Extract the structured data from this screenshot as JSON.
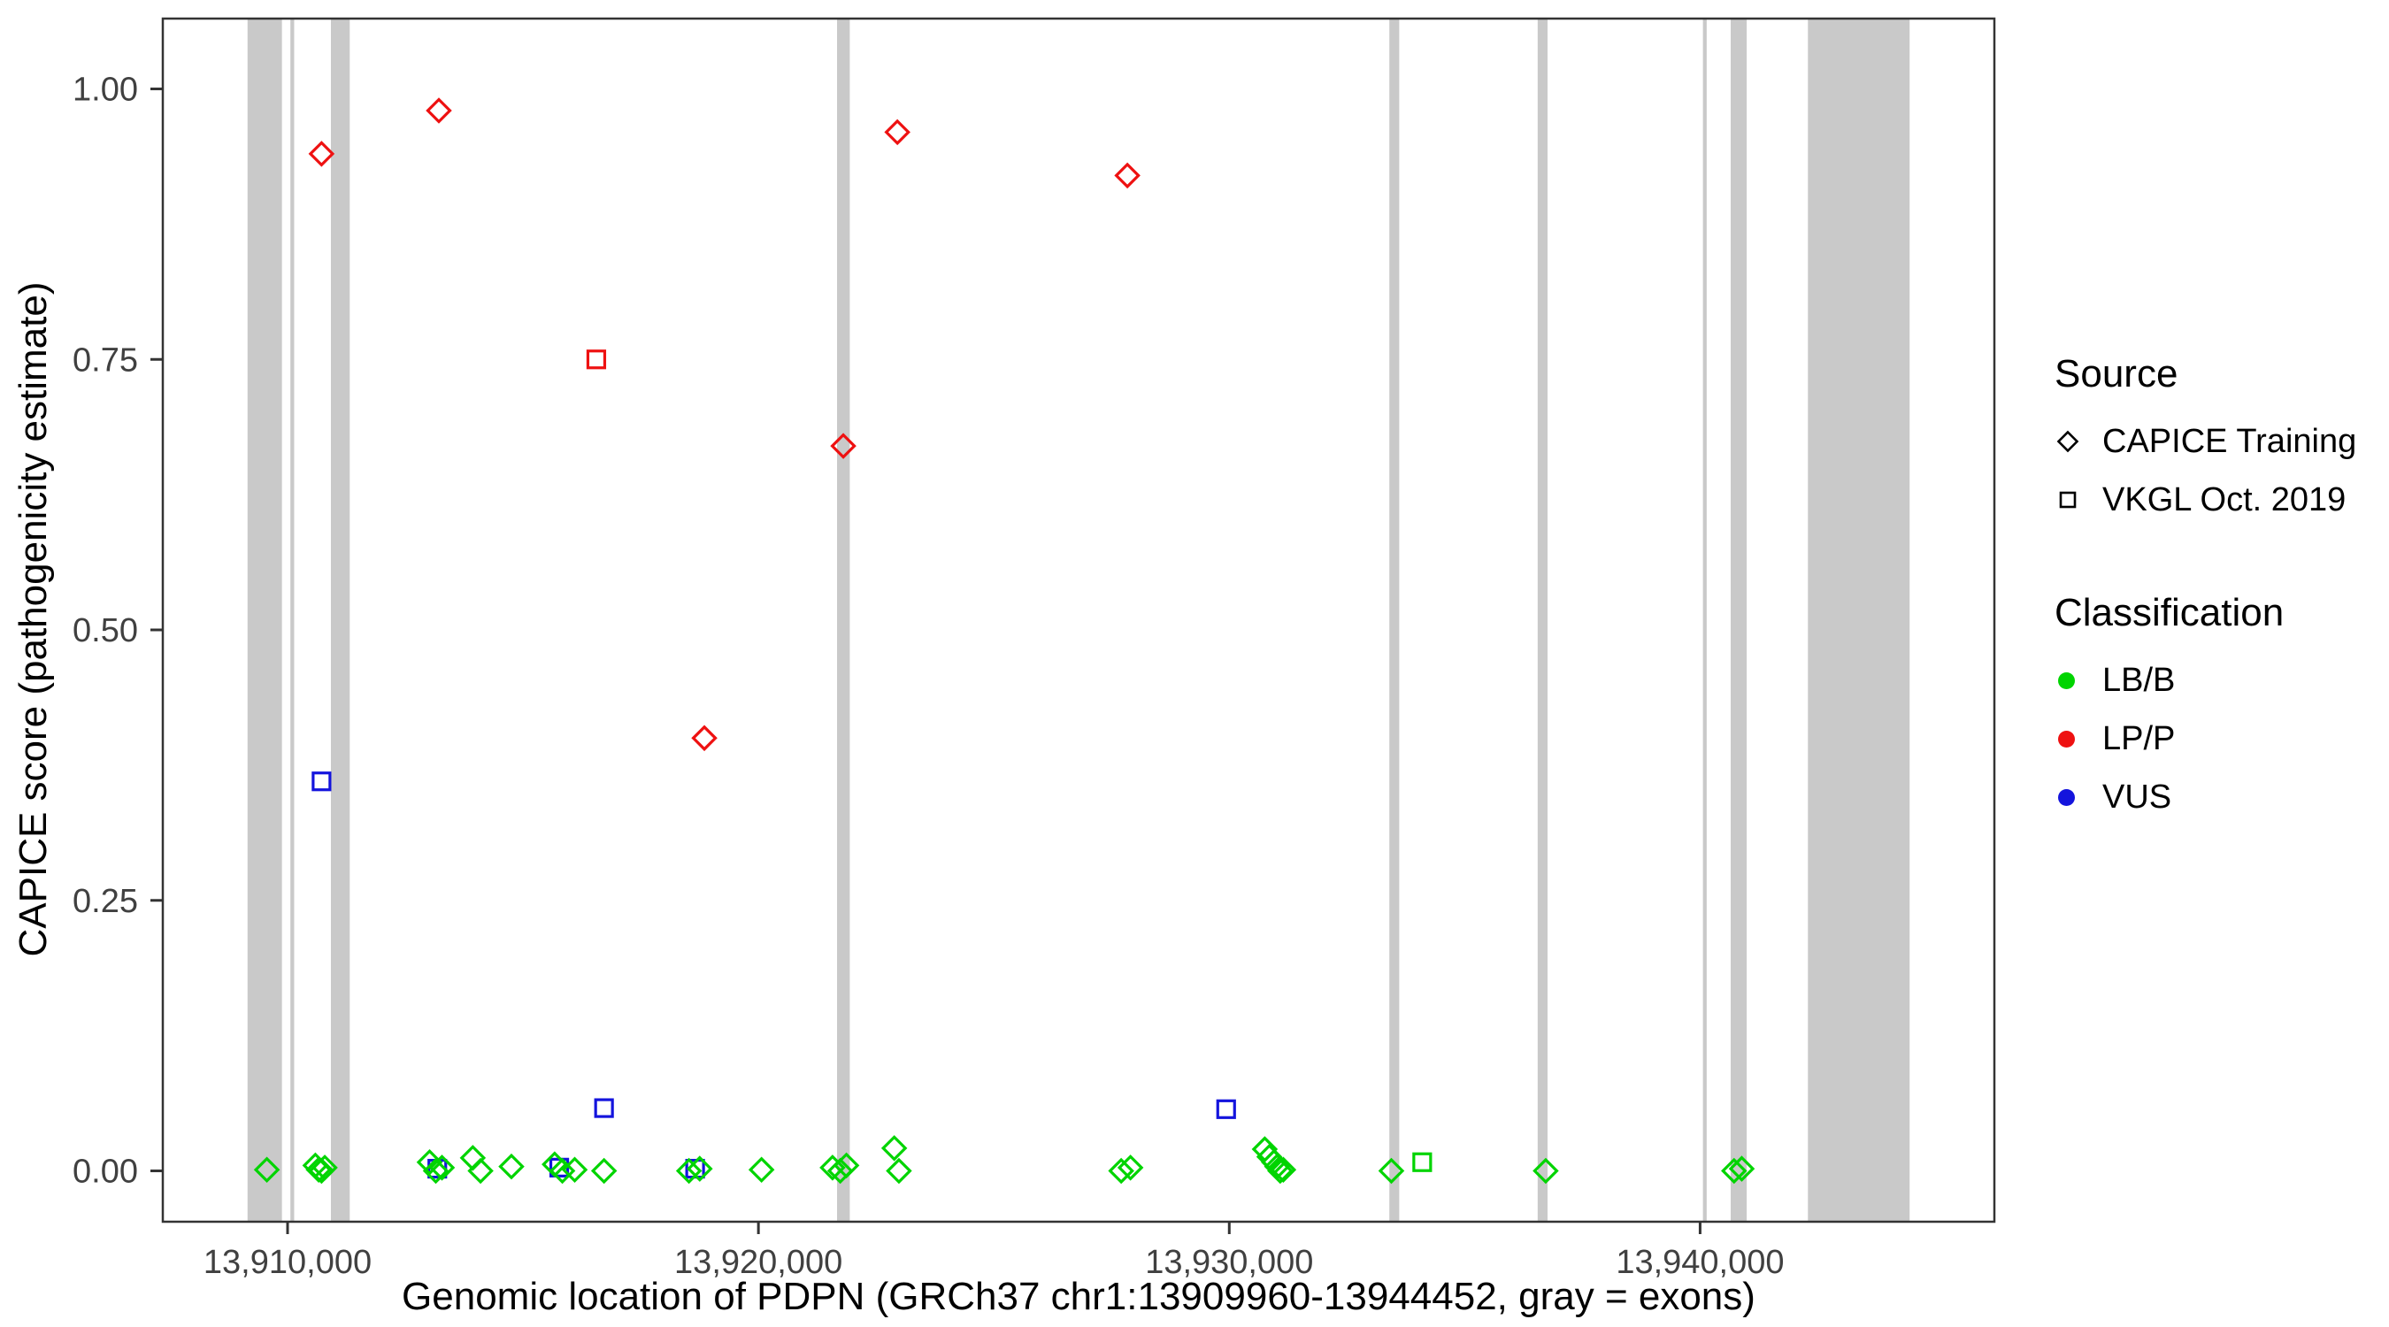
{
  "chart_data": {
    "type": "scatter",
    "title": "",
    "xlabel": "Genomic location of PDPN (GRCh37 chr1:13909960-13944452, gray = exons)",
    "ylabel": "CAPICE score (pathogenicity estimate)",
    "xlim": [
      13907350,
      13946250
    ],
    "ylim": [
      -0.047,
      1.065
    ],
    "grid": false,
    "legend_position": "right",
    "x_ticks": [
      {
        "value": 13910000,
        "label": "13,910,000"
      },
      {
        "value": 13920000,
        "label": "13,920,000"
      },
      {
        "value": 13930000,
        "label": "13,930,000"
      },
      {
        "value": 13940000,
        "label": "13,940,000"
      }
    ],
    "y_ticks": [
      {
        "value": 0.0,
        "label": "0.00"
      },
      {
        "value": 0.25,
        "label": "0.25"
      },
      {
        "value": 0.5,
        "label": "0.50"
      },
      {
        "value": 0.75,
        "label": "0.75"
      },
      {
        "value": 1.0,
        "label": "1.00"
      }
    ],
    "exon_color": "#c9c9c9",
    "exons": [
      [
        13909150,
        13909880
      ],
      [
        13910060,
        13910140
      ],
      [
        13910920,
        13911320
      ],
      [
        13921670,
        13921940
      ],
      [
        13933400,
        13933610
      ],
      [
        13936550,
        13936760
      ],
      [
        13940060,
        13940140
      ],
      [
        13940650,
        13940990
      ],
      [
        13942290,
        13944450
      ]
    ],
    "classification_colors": {
      "LB/B": "#00d400",
      "LP/P": "#ee1111",
      "VUS": "#1414dd"
    },
    "source_shapes": {
      "CAPICE Training": "diamond",
      "VKGL Oct. 2019": "square"
    },
    "points": [
      {
        "x": 13910721,
        "y": 0.94,
        "source": "CAPICE Training",
        "classification": "LP/P"
      },
      {
        "x": 13913213,
        "y": 0.98,
        "source": "CAPICE Training",
        "classification": "LP/P"
      },
      {
        "x": 13922951,
        "y": 0.96,
        "source": "CAPICE Training",
        "classification": "LP/P"
      },
      {
        "x": 13927836,
        "y": 0.92,
        "source": "CAPICE Training",
        "classification": "LP/P"
      },
      {
        "x": 13921803,
        "y": 0.67,
        "source": "CAPICE Training",
        "classification": "LP/P"
      },
      {
        "x": 13918852,
        "y": 0.4,
        "source": "CAPICE Training",
        "classification": "LP/P"
      },
      {
        "x": 13916557,
        "y": 0.75,
        "source": "VKGL Oct. 2019",
        "classification": "LP/P"
      },
      {
        "x": 13910721,
        "y": 0.36,
        "source": "VKGL Oct. 2019",
        "classification": "VUS"
      },
      {
        "x": 13916721,
        "y": 0.058,
        "source": "VKGL Oct. 2019",
        "classification": "VUS"
      },
      {
        "x": 13929934,
        "y": 0.057,
        "source": "VKGL Oct. 2019",
        "classification": "VUS"
      },
      {
        "x": 13913180,
        "y": 0.002,
        "source": "VKGL Oct. 2019",
        "classification": "VUS"
      },
      {
        "x": 13915770,
        "y": 0.003,
        "source": "VKGL Oct. 2019",
        "classification": "VUS"
      },
      {
        "x": 13918656,
        "y": 0.002,
        "source": "VKGL Oct. 2019",
        "classification": "VUS"
      },
      {
        "x": 13934098,
        "y": 0.008,
        "source": "VKGL Oct. 2019",
        "classification": "LB/B"
      },
      {
        "x": 13909560,
        "y": 0.001,
        "source": "CAPICE Training",
        "classification": "LB/B"
      },
      {
        "x": 13910590,
        "y": 0.005,
        "source": "CAPICE Training",
        "classification": "LB/B"
      },
      {
        "x": 13910660,
        "y": 0.001,
        "source": "CAPICE Training",
        "classification": "LB/B"
      },
      {
        "x": 13910721,
        "y": 0.0,
        "source": "CAPICE Training",
        "classification": "LB/B"
      },
      {
        "x": 13910790,
        "y": 0.003,
        "source": "CAPICE Training",
        "classification": "LB/B"
      },
      {
        "x": 13913016,
        "y": 0.008,
        "source": "CAPICE Training",
        "classification": "LB/B"
      },
      {
        "x": 13913148,
        "y": 0.0,
        "source": "CAPICE Training",
        "classification": "LB/B"
      },
      {
        "x": 13913279,
        "y": 0.003,
        "source": "CAPICE Training",
        "classification": "LB/B"
      },
      {
        "x": 13913934,
        "y": 0.012,
        "source": "CAPICE Training",
        "classification": "LB/B"
      },
      {
        "x": 13914098,
        "y": 0.0,
        "source": "CAPICE Training",
        "classification": "LB/B"
      },
      {
        "x": 13914754,
        "y": 0.004,
        "source": "CAPICE Training",
        "classification": "LB/B"
      },
      {
        "x": 13915672,
        "y": 0.006,
        "source": "CAPICE Training",
        "classification": "LB/B"
      },
      {
        "x": 13915836,
        "y": 0.0,
        "source": "CAPICE Training",
        "classification": "LB/B"
      },
      {
        "x": 13916098,
        "y": 0.001,
        "source": "CAPICE Training",
        "classification": "LB/B"
      },
      {
        "x": 13916721,
        "y": 0.0,
        "source": "CAPICE Training",
        "classification": "LB/B"
      },
      {
        "x": 13918525,
        "y": 0.0,
        "source": "CAPICE Training",
        "classification": "LB/B"
      },
      {
        "x": 13918754,
        "y": 0.002,
        "source": "CAPICE Training",
        "classification": "LB/B"
      },
      {
        "x": 13920066,
        "y": 0.001,
        "source": "CAPICE Training",
        "classification": "LB/B"
      },
      {
        "x": 13921574,
        "y": 0.003,
        "source": "CAPICE Training",
        "classification": "LB/B"
      },
      {
        "x": 13921738,
        "y": 0.0,
        "source": "CAPICE Training",
        "classification": "LB/B"
      },
      {
        "x": 13921869,
        "y": 0.005,
        "source": "CAPICE Training",
        "classification": "LB/B"
      },
      {
        "x": 13922885,
        "y": 0.021,
        "source": "CAPICE Training",
        "classification": "LB/B"
      },
      {
        "x": 13922984,
        "y": 0.0,
        "source": "CAPICE Training",
        "classification": "LB/B"
      },
      {
        "x": 13927705,
        "y": 0.0,
        "source": "CAPICE Training",
        "classification": "LB/B"
      },
      {
        "x": 13927902,
        "y": 0.003,
        "source": "CAPICE Training",
        "classification": "LB/B"
      },
      {
        "x": 13930754,
        "y": 0.02,
        "source": "CAPICE Training",
        "classification": "LB/B"
      },
      {
        "x": 13930852,
        "y": 0.013,
        "source": "CAPICE Training",
        "classification": "LB/B"
      },
      {
        "x": 13930950,
        "y": 0.008,
        "source": "CAPICE Training",
        "classification": "LB/B"
      },
      {
        "x": 13931016,
        "y": 0.004,
        "source": "CAPICE Training",
        "classification": "LB/B"
      },
      {
        "x": 13931082,
        "y": 0.0,
        "source": "CAPICE Training",
        "classification": "LB/B"
      },
      {
        "x": 13931148,
        "y": 0.001,
        "source": "CAPICE Training",
        "classification": "LB/B"
      },
      {
        "x": 13933443,
        "y": 0.0,
        "source": "CAPICE Training",
        "classification": "LB/B"
      },
      {
        "x": 13936721,
        "y": 0.0,
        "source": "CAPICE Training",
        "classification": "LB/B"
      },
      {
        "x": 13940721,
        "y": 0.0,
        "source": "CAPICE Training",
        "classification": "LB/B"
      },
      {
        "x": 13940885,
        "y": 0.002,
        "source": "CAPICE Training",
        "classification": "LB/B"
      }
    ],
    "legend": {
      "source_title": "Source",
      "source_items": [
        {
          "label": "CAPICE Training",
          "shape": "diamond"
        },
        {
          "label": "VKGL Oct. 2019",
          "shape": "square"
        }
      ],
      "classification_title": "Classification",
      "classification_items": [
        {
          "label": "LB/B",
          "color": "#00d400"
        },
        {
          "label": "LP/P",
          "color": "#ee1111"
        },
        {
          "label": "VUS",
          "color": "#1414dd"
        }
      ]
    }
  }
}
